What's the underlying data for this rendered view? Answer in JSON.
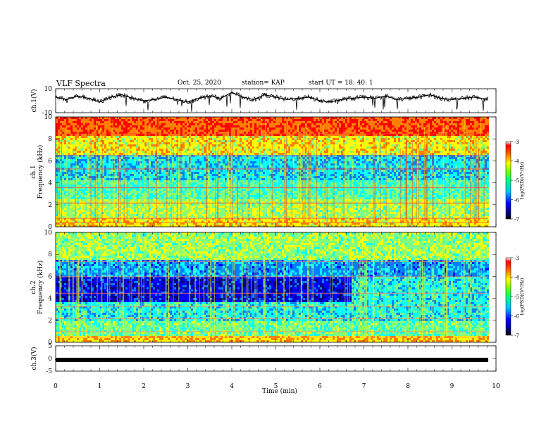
{
  "header": {
    "title": "VLF Spectra",
    "date": "Oct. 25, 2020",
    "station": "station= KAP",
    "start": "start  UT  =   18: 40: 1"
  },
  "chart_data": [
    {
      "type": "line",
      "panel": "ch1-waveform",
      "ylabel": "ch.1(V)",
      "ylim": [
        -10,
        10
      ],
      "yticks": [
        "10",
        "-10"
      ],
      "x": [
        0,
        0.25,
        0.5,
        0.75,
        1.0,
        1.25,
        1.5,
        1.75,
        2.0,
        2.25,
        2.5,
        2.75,
        3.0,
        3.25,
        3.5,
        3.75,
        4.0,
        4.25,
        4.5,
        4.75,
        5.0,
        5.25,
        5.5,
        5.75,
        6.0,
        6.25,
        6.5,
        6.75,
        7.0,
        7.25,
        7.5,
        7.75,
        8.0,
        8.25,
        8.5,
        8.75,
        9.0,
        9.25,
        9.5,
        9.8
      ],
      "values": [
        3,
        1,
        4,
        2,
        -1,
        3,
        5,
        2,
        0,
        1,
        3,
        1,
        -1,
        2,
        4,
        2,
        7,
        3,
        1,
        5,
        3,
        1,
        2,
        3,
        0,
        -1,
        1,
        2,
        3,
        2,
        4,
        1,
        2,
        3,
        5,
        2,
        1,
        2,
        3,
        1
      ]
    },
    {
      "type": "heatmap",
      "panel": "ch1-spectrogram",
      "ylabel": "Frequency (kHz)",
      "channel_label": "ch.1",
      "ylim": [
        0,
        10
      ],
      "yticks": [
        "0",
        "2",
        "4",
        "6",
        "8",
        "10"
      ],
      "colorbar": {
        "label": "log(PSD)(V²/Hz)",
        "ticks": [
          "-3",
          "-4",
          "-5",
          "-6",
          "-7"
        ]
      }
    },
    {
      "type": "heatmap",
      "panel": "ch2-spectrogram",
      "ylabel": "Frequency (kHz)",
      "channel_label": "ch.2",
      "ylim": [
        0,
        10
      ],
      "yticks": [
        "0",
        "2",
        "4",
        "6",
        "8",
        "10"
      ],
      "colorbar": {
        "label": "log(PSD)(V²/Hz)",
        "ticks": [
          "-3",
          "-4",
          "-5",
          "-6",
          "-7"
        ]
      }
    },
    {
      "type": "line",
      "panel": "ch3-waveform",
      "ylabel": "ch.3(V)",
      "ylim": [
        -5,
        5
      ],
      "yticks": [
        "5",
        "0",
        "-5"
      ],
      "x": [
        0,
        9.8
      ],
      "values": [
        -0.5,
        -0.5
      ]
    }
  ],
  "xaxis": {
    "label": "Time  (min)",
    "range": [
      0,
      10
    ],
    "ticks": [
      "0",
      "1",
      "2",
      "3",
      "4",
      "5",
      "6",
      "7",
      "8",
      "9",
      "10"
    ]
  },
  "colors": {
    "spectral": [
      "#00007f",
      "#0000ff",
      "#0080ff",
      "#00ffff",
      "#80ff80",
      "#ffff00",
      "#ff8000",
      "#ff0000"
    ]
  }
}
